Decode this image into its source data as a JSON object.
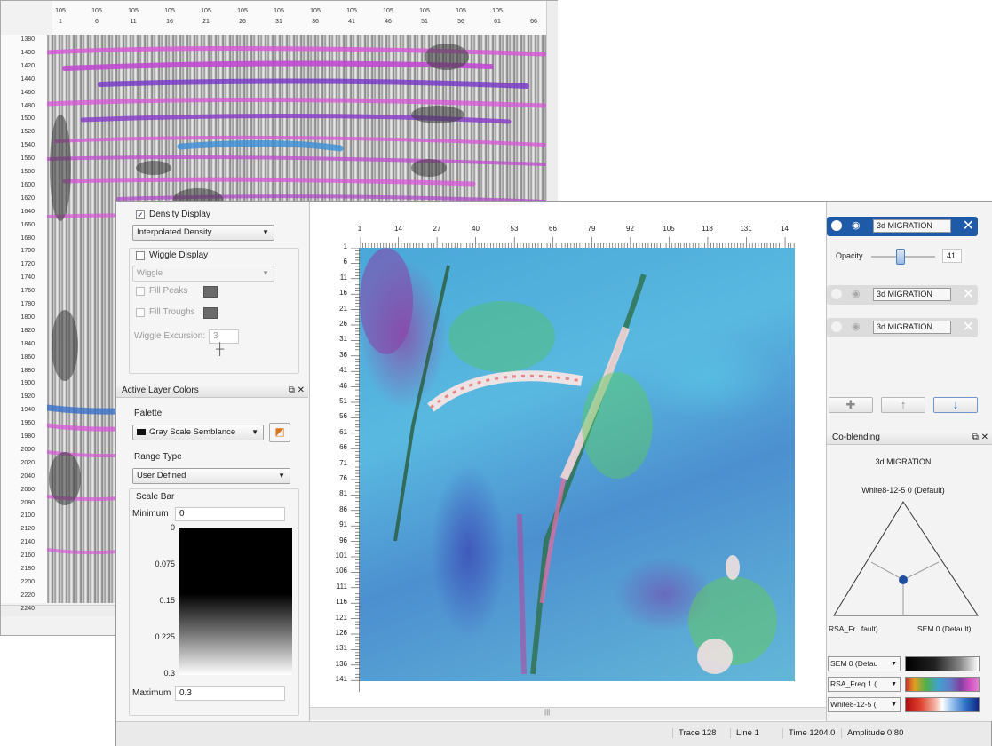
{
  "back_window": {
    "top_ticks_row1": [
      "105",
      "105",
      "105",
      "105",
      "105",
      "105",
      "105",
      "105",
      "105",
      "105",
      "105",
      "105",
      "105"
    ],
    "top_ticks_row2": [
      "1",
      "6",
      "11",
      "16",
      "21",
      "26",
      "31",
      "36",
      "41",
      "46",
      "51",
      "56",
      "61",
      "66"
    ],
    "y_ticks": [
      "1380",
      "1400",
      "1420",
      "1440",
      "1460",
      "1480",
      "1500",
      "1520",
      "1540",
      "1560",
      "1580",
      "1600",
      "1620",
      "1640",
      "1660",
      "1680",
      "1700",
      "1720",
      "1740",
      "1760",
      "1780",
      "1800",
      "1820",
      "1840",
      "1860",
      "1880",
      "1900",
      "1920",
      "1940",
      "1960",
      "1980",
      "2000",
      "2020",
      "2040",
      "2060",
      "2080",
      "2100",
      "2120",
      "2140",
      "2160",
      "2180",
      "2200",
      "2220",
      "2240"
    ]
  },
  "display_panel": {
    "density_display_label": "Density Display",
    "density_checked": "✓",
    "density_mode": "Interpolated Density",
    "wiggle_display_label": "Wiggle Display",
    "wiggle_mode": "Wiggle",
    "fill_peaks_label": "Fill Peaks",
    "fill_troughs_label": "Fill Troughs",
    "wiggle_excursion_label": "Wiggle Excursion:",
    "wiggle_excursion_value": "3"
  },
  "colors_panel": {
    "title": "Active Layer Colors",
    "palette_label": "Palette",
    "palette_value": "Gray Scale Semblance",
    "range_type_label": "Range Type",
    "range_type_value": "User Defined",
    "scale_bar_label": "Scale Bar",
    "minimum_label": "Minimum",
    "minimum_value": "0",
    "maximum_label": "Maximum",
    "maximum_value": "0.3",
    "scale_ticks": [
      "0",
      "0.075",
      "0.15",
      "0.225",
      "0.3"
    ]
  },
  "viewer": {
    "x_ticks": [
      "1",
      "14",
      "27",
      "40",
      "53",
      "66",
      "79",
      "92",
      "105",
      "118",
      "131",
      "14"
    ],
    "y_ticks": [
      "1",
      "6",
      "11",
      "16",
      "21",
      "26",
      "31",
      "36",
      "41",
      "46",
      "51",
      "56",
      "61",
      "66",
      "71",
      "76",
      "81",
      "86",
      "91",
      "96",
      "101",
      "106",
      "111",
      "116",
      "121",
      "126",
      "131",
      "136",
      "141"
    ],
    "scroll_grip": "|||"
  },
  "layers_panel": {
    "layers": [
      {
        "name": "3d MIGRATION"
      },
      {
        "name": "3d MIGRATION"
      },
      {
        "name": "3d MIGRATION"
      }
    ],
    "opacity_label": "Opacity",
    "opacity_value": "41",
    "add_icon": "✚",
    "up_icon": "↑",
    "down_icon": "↓"
  },
  "coblending": {
    "title": "Co-blending",
    "layer_name": "3d MIGRATION",
    "top_vertex": "White8-12-5 0 (Default)",
    "left_vertex": "RSA_Fr...fault)",
    "right_vertex": "SEM 0 (Default)",
    "channels": [
      {
        "label": "SEM 0 (Defau"
      },
      {
        "label": "RSA_Freq 1 ("
      },
      {
        "label": "White8-12-5 ("
      }
    ]
  },
  "status_bar": {
    "trace": "Trace 128",
    "line": "Line 1",
    "time": "Time 1204.0",
    "amplitude": "Amplitude 0.80"
  },
  "colors": {
    "accent": "#1f5aa8",
    "magenta": "#d65ad6"
  }
}
